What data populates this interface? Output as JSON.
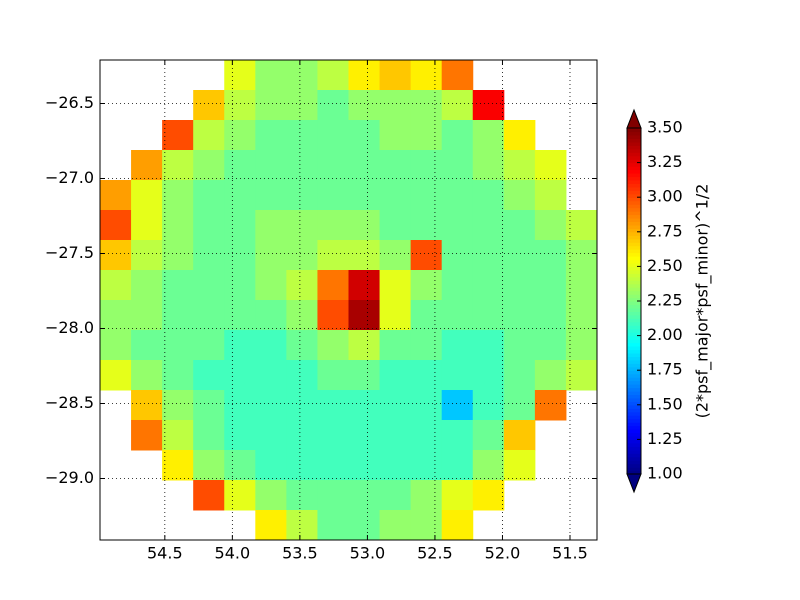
{
  "chart_data": {
    "type": "heatmap",
    "x_edges": [
      54.98,
      54.75,
      54.52,
      54.29,
      54.06,
      53.83,
      53.6,
      53.37,
      53.14,
      52.91,
      52.68,
      52.45,
      52.22,
      51.99,
      51.76,
      51.53,
      51.3
    ],
    "y_edges": [
      -26.21,
      -26.41,
      -26.61,
      -26.81,
      -27.01,
      -27.21,
      -27.41,
      -27.61,
      -27.81,
      -28.01,
      -28.21,
      -28.41,
      -28.61,
      -28.81,
      -29.01,
      -29.21,
      -29.41
    ],
    "z": [
      [
        null,
        null,
        null,
        null,
        2.5,
        2.3,
        2.3,
        2.4,
        2.6,
        2.7,
        2.6,
        2.9,
        null,
        null,
        null,
        null
      ],
      [
        null,
        null,
        null,
        2.7,
        2.4,
        2.3,
        2.3,
        2.2,
        2.3,
        2.3,
        2.3,
        2.4,
        3.2,
        null,
        null,
        null
      ],
      [
        null,
        null,
        3.0,
        2.4,
        2.3,
        2.2,
        2.2,
        2.2,
        2.2,
        2.3,
        2.3,
        2.2,
        2.3,
        2.6,
        null,
        null
      ],
      [
        null,
        2.8,
        2.4,
        2.3,
        2.2,
        2.2,
        2.2,
        2.2,
        2.2,
        2.2,
        2.2,
        2.2,
        2.3,
        2.4,
        2.5,
        null
      ],
      [
        2.8,
        2.5,
        2.3,
        2.2,
        2.2,
        2.2,
        2.2,
        2.2,
        2.2,
        2.2,
        2.2,
        2.2,
        2.2,
        2.3,
        2.4,
        null
      ],
      [
        3.0,
        2.5,
        2.3,
        2.2,
        2.2,
        2.3,
        2.3,
        2.3,
        2.3,
        2.2,
        2.2,
        2.2,
        2.2,
        2.2,
        2.3,
        2.4
      ],
      [
        2.7,
        2.4,
        2.3,
        2.2,
        2.2,
        2.3,
        2.3,
        2.4,
        2.4,
        2.3,
        3.0,
        2.2,
        2.2,
        2.2,
        2.2,
        2.3
      ],
      [
        2.4,
        2.3,
        2.2,
        2.2,
        2.2,
        2.3,
        2.4,
        2.9,
        3.3,
        2.5,
        2.3,
        2.2,
        2.2,
        2.2,
        2.2,
        2.3
      ],
      [
        2.3,
        2.3,
        2.2,
        2.2,
        2.2,
        2.2,
        2.3,
        3.0,
        3.4,
        2.5,
        2.2,
        2.2,
        2.2,
        2.2,
        2.2,
        2.3
      ],
      [
        2.3,
        2.2,
        2.2,
        2.2,
        2.1,
        2.1,
        2.2,
        2.3,
        2.4,
        2.2,
        2.2,
        2.1,
        2.1,
        2.2,
        2.2,
        2.3
      ],
      [
        2.5,
        2.3,
        2.2,
        2.1,
        2.1,
        2.1,
        2.1,
        2.2,
        2.2,
        2.1,
        2.1,
        2.1,
        2.1,
        2.2,
        2.3,
        2.4
      ],
      [
        null,
        2.7,
        2.3,
        2.2,
        2.1,
        2.1,
        2.1,
        2.1,
        2.1,
        2.1,
        2.1,
        1.8,
        2.1,
        2.2,
        2.9,
        null
      ],
      [
        null,
        2.9,
        2.4,
        2.2,
        2.1,
        2.1,
        2.1,
        2.1,
        2.1,
        2.1,
        2.1,
        2.1,
        2.2,
        2.7,
        null,
        null
      ],
      [
        null,
        null,
        2.6,
        2.3,
        2.2,
        2.1,
        2.1,
        2.1,
        2.1,
        2.1,
        2.1,
        2.1,
        2.3,
        2.5,
        null,
        null
      ],
      [
        null,
        null,
        null,
        3.0,
        2.5,
        2.3,
        2.2,
        2.2,
        2.2,
        2.2,
        2.3,
        2.5,
        2.6,
        null,
        null,
        null
      ],
      [
        null,
        null,
        null,
        null,
        null,
        2.6,
        2.4,
        2.2,
        2.2,
        2.3,
        2.3,
        2.6,
        null,
        null,
        null,
        null
      ]
    ],
    "xlim": [
      54.98,
      51.3
    ],
    "ylim": [
      -29.41,
      -26.21
    ],
    "xticks": [
      54.5,
      {
        "value": 54.0,
        "label": "54.0"
      },
      53.5,
      {
        "value": 53.0,
        "label": "53.0"
      },
      52.5,
      {
        "value": 52.0,
        "label": "52.0"
      },
      51.5
    ],
    "yticks": [
      {
        "value": -26.5,
        "label": "−26.5"
      },
      {
        "value": -27.0,
        "label": "−27.0"
      },
      {
        "value": -27.5,
        "label": "−27.5"
      },
      {
        "value": -28.0,
        "label": "−28.0"
      },
      {
        "value": -28.5,
        "label": "−28.5"
      },
      {
        "value": -29.0,
        "label": "−29.0"
      }
    ],
    "grid": true,
    "colormap": "jet",
    "colorbar": {
      "label": "(2*psf_major*psf_minor)^1/2",
      "lim": [
        1.0,
        3.5
      ],
      "ticks": [
        {
          "value": 1.0,
          "label": "1.00"
        },
        {
          "value": 1.25,
          "label": "1.25"
        },
        {
          "value": 1.5,
          "label": "1.50"
        },
        {
          "value": 1.75,
          "label": "1.75"
        },
        {
          "value": 2.0,
          "label": "2.00"
        },
        {
          "value": 2.25,
          "label": "2.25"
        },
        {
          "value": 2.5,
          "label": "2.50"
        },
        {
          "value": 2.75,
          "label": "2.75"
        },
        {
          "value": 3.0,
          "label": "3.00"
        },
        {
          "value": 3.25,
          "label": "3.25"
        },
        {
          "value": 3.5,
          "label": "3.50"
        }
      ]
    }
  }
}
